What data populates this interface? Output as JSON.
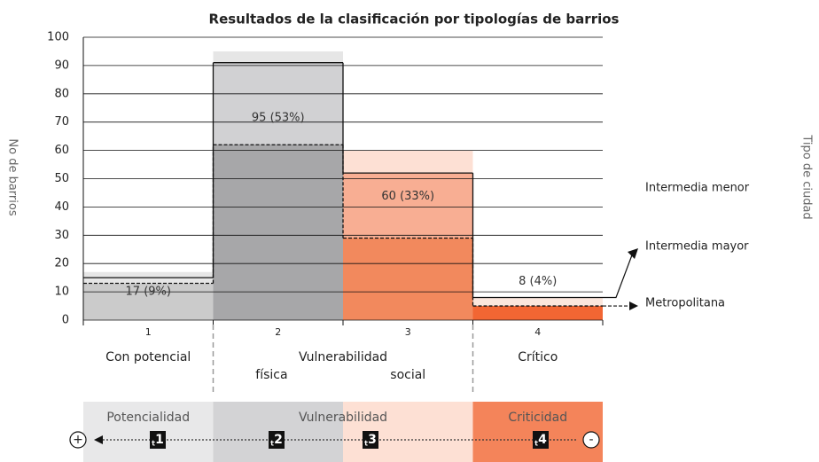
{
  "chart_data": {
    "type": "bar",
    "title": "Resultados de la clasificación por tipologías de barrios",
    "y_label": "No de barrios",
    "y2_label": "Tipo de ciudad",
    "categories": [
      "1",
      "2",
      "3",
      "4"
    ],
    "category_labels": [
      "Con potencial",
      "Vulnerabilidad",
      "Crítico"
    ],
    "sublabels": [
      "física",
      "social"
    ],
    "values": [
      17,
      95,
      60,
      8
    ],
    "value_labels": [
      "17 (9%)",
      "95 (53%)",
      "60 (33%)",
      "8 (4%)"
    ],
    "series": [
      {
        "name": "Intermedia mayor",
        "line": "solid",
        "values": [
          15,
          91,
          52,
          8
        ]
      },
      {
        "name": "Metropolitana",
        "line": "dashed",
        "values": [
          13,
          62,
          29,
          5
        ]
      }
    ],
    "annotation": "Intermedia menor",
    "column_colors": [
      [
        "#e6e6e6",
        "#e6e6e6",
        "#cbcbcb"
      ],
      [
        "#e6e6e6",
        "#d1d1d3",
        "#a7a7a9"
      ],
      [
        "#fde0d4",
        "#f8ae93",
        "#f2895d"
      ],
      [
        "#fbe6dc",
        "#fbe6dc",
        "#f26633"
      ]
    ],
    "band_colors": [
      "#e8e8e9",
      "#d3d3d5",
      "#fde0d4",
      "#f4845a"
    ],
    "bands": [
      "Potencialidad",
      "Vulnerabilidad",
      "Criticidad"
    ],
    "scale_ends": [
      "+",
      "-"
    ],
    "step_prefix": "t",
    "steps": [
      "1",
      "2",
      "3",
      "4"
    ],
    "ylim": [
      0,
      100
    ],
    "yticks": [
      0,
      10,
      20,
      30,
      40,
      50,
      60,
      70,
      80,
      90,
      100
    ],
    "grid": true
  }
}
